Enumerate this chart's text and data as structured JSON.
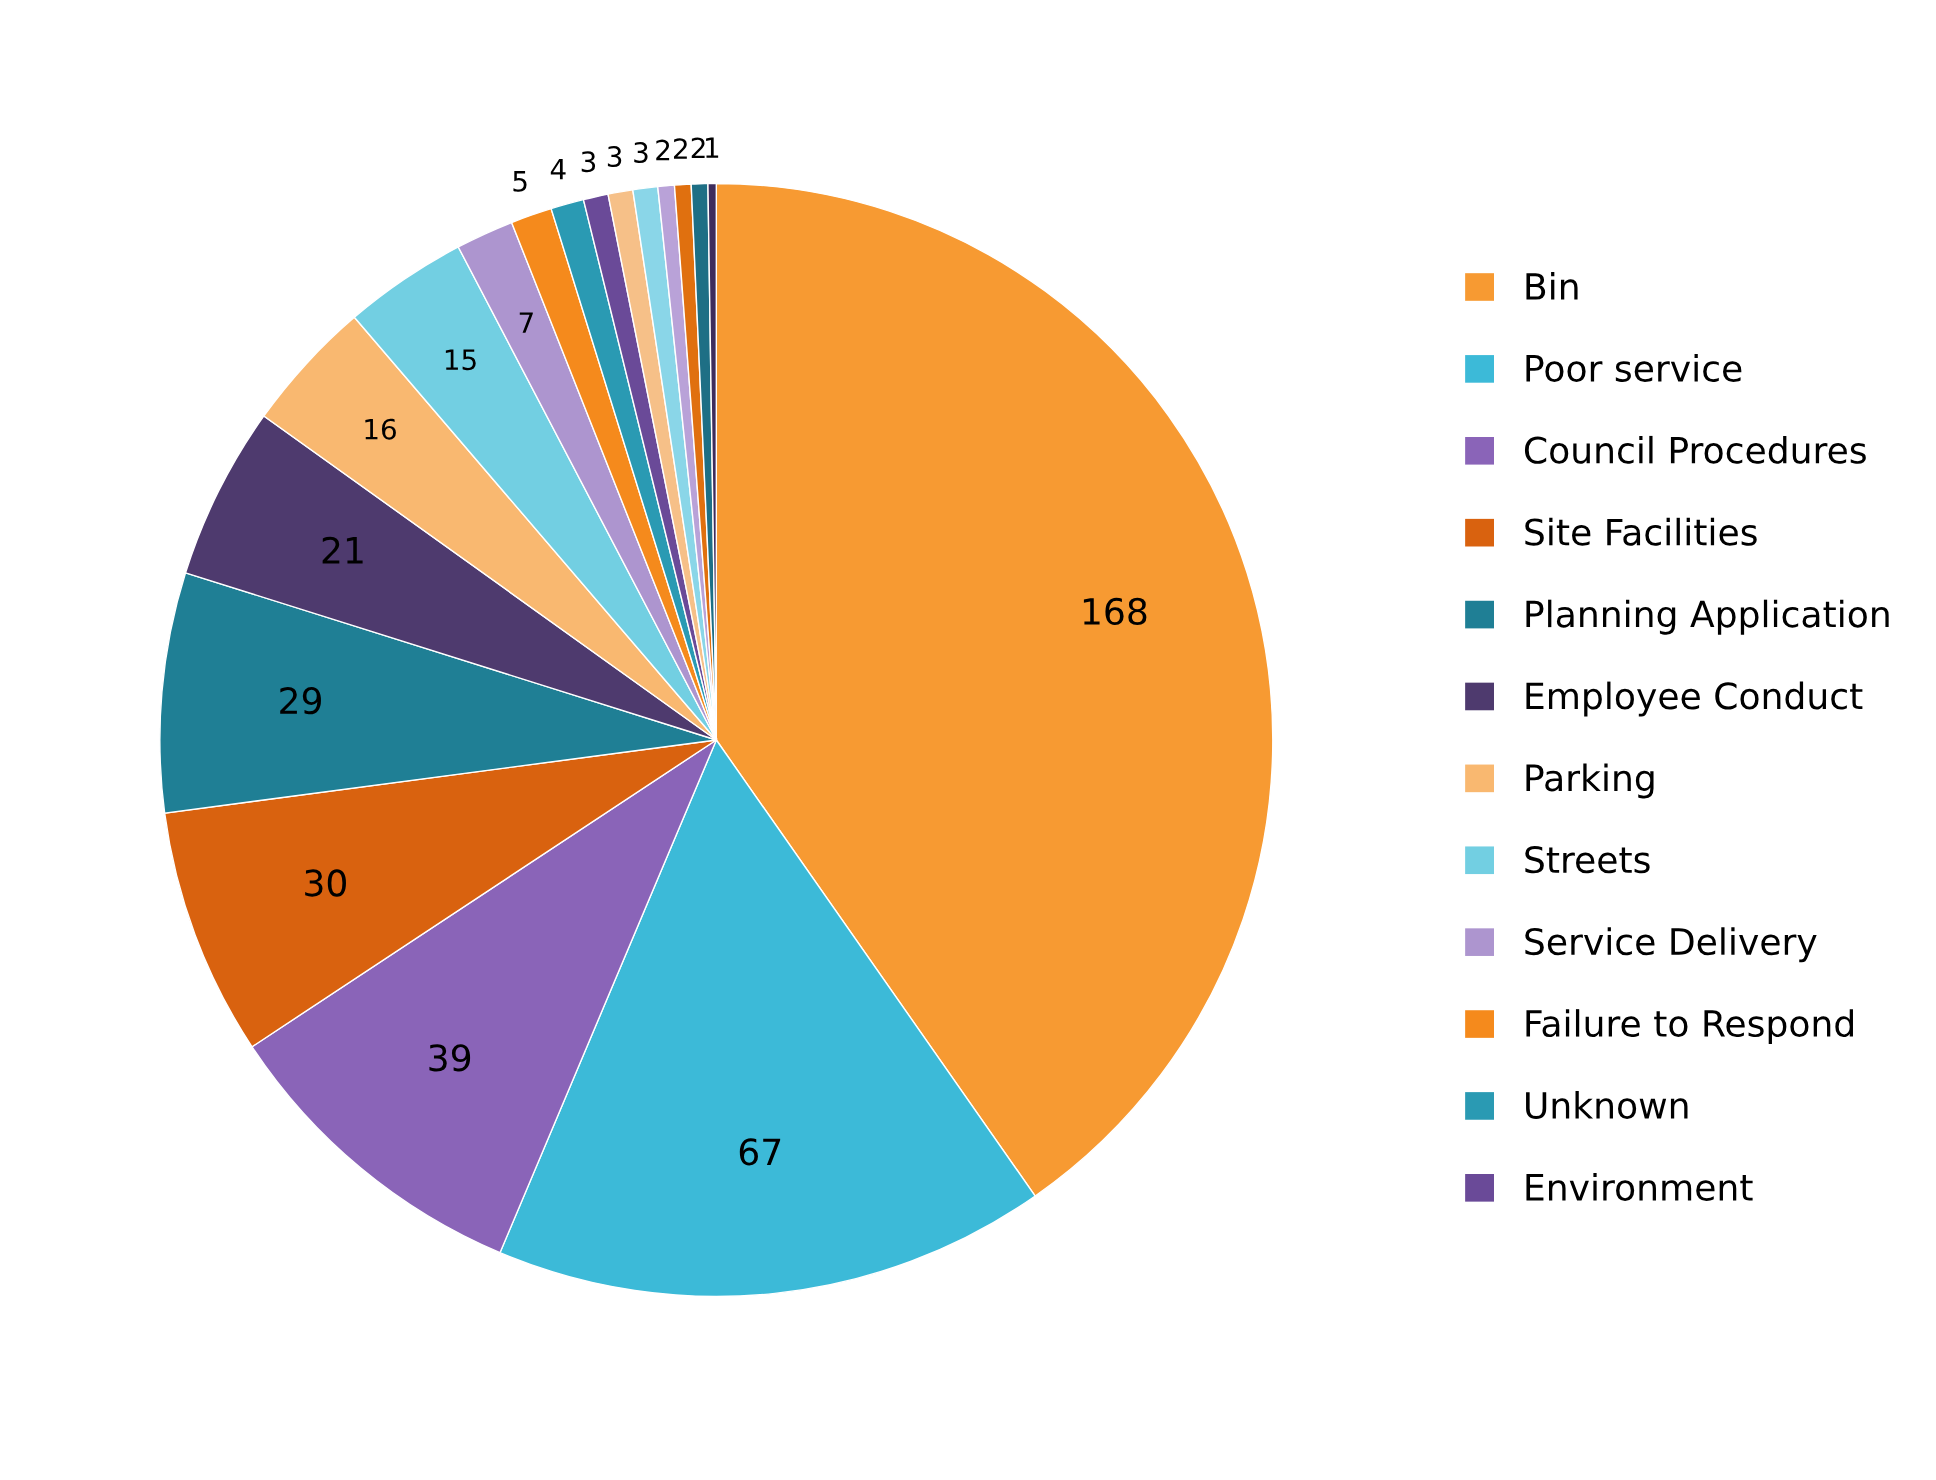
{
  "chart_data": {
    "type": "pie",
    "categories": [
      "Bin",
      "Poor service",
      "Council Procedures",
      "Site Facilities",
      "Planning Application",
      "Employee Conduct",
      "Parking",
      "Streets",
      "Service Delivery",
      "Failure to Respond",
      "Unknown",
      "Environment",
      null,
      null,
      null,
      null,
      null,
      null
    ],
    "values": [
      168,
      67,
      39,
      30,
      29,
      21,
      16,
      15,
      7,
      5,
      4,
      3,
      3,
      3,
      2,
      2,
      2,
      1
    ],
    "colors": [
      "#f79a32",
      "#3cbad8",
      "#8a64b8",
      "#d9620f",
      "#1f7f95",
      "#4e3a6e",
      "#f9b870",
      "#72cfe2",
      "#ad95cf",
      "#f58a1c",
      "#2a9ab3",
      "#6a4a98",
      "#f6c088",
      "#8ad6e8",
      "#b9a2d8",
      "#e0700f",
      "#1e6f85",
      "#3e2c5c"
    ],
    "data_labels": true,
    "legend": "right"
  }
}
